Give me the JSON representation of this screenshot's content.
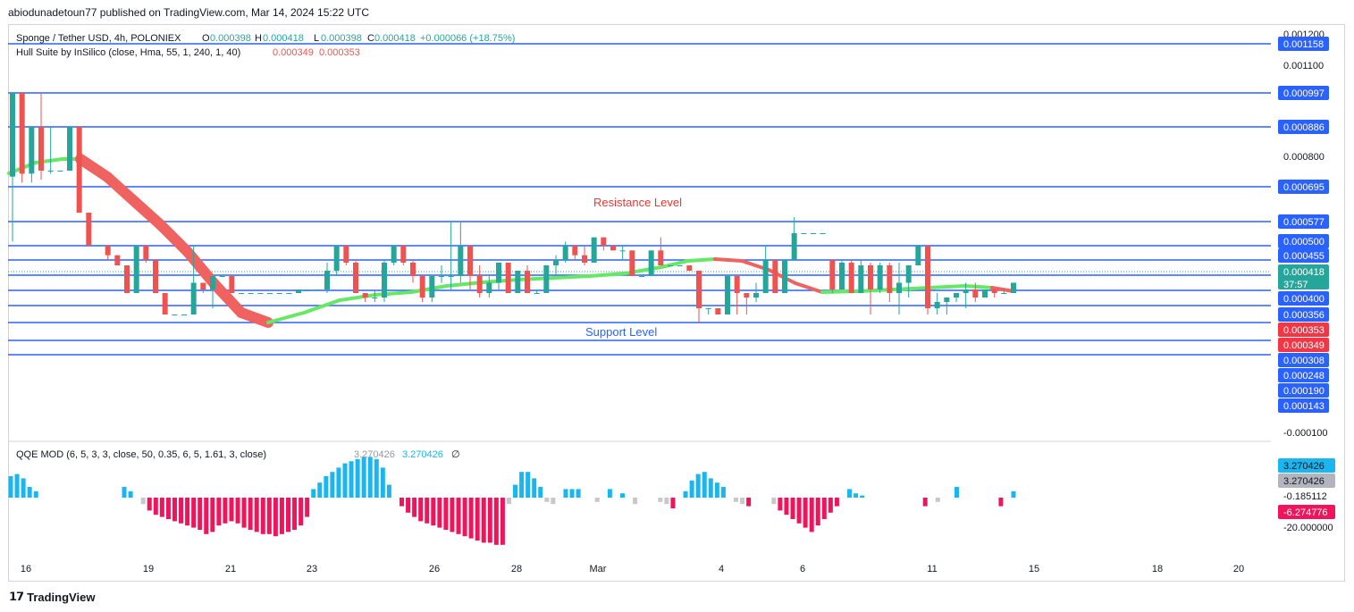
{
  "header": {
    "publisher_line": "abiodunadetoun77 published on TradingView.com, Mar 14, 2024 15:22 UTC"
  },
  "footer": {
    "brand": "TradingView"
  },
  "legend": {
    "symbol_line": "Sponge / Tether USD, 4h, POLONIEX",
    "ohlc": {
      "o_label": "O",
      "o_value": "0.000398",
      "h_label": "H",
      "h_value": "0.000418",
      "l_label": "L",
      "l_value": "0.000398",
      "c_label": "C",
      "c_value": "0.000418",
      "change": "+0.000066 (+18.75%)"
    },
    "indicator_line": "Hull Suite by InSilico (close, Hma, 55, 1, 240, 1, 40)",
    "indicator_values": [
      "0.000349",
      "0.000353"
    ],
    "qqe_line": "QQE MOD (6, 5, 3, 3, close, 50, 0.35, 6, 5, 1.61, 3, close)",
    "qqe_values": [
      "3.270426",
      "3.270426"
    ],
    "qqe_extra_icon": "empty-set-icon"
  },
  "annotations": {
    "resistance": "Resistance Level",
    "support": "Support Level"
  },
  "colors": {
    "up": "#26a69a",
    "down": "#ef5350",
    "level_line": "#2962ff",
    "hull_green": "#66e866",
    "hull_red": "#f0625f",
    "qqe_blue": "#1ab6f0",
    "qqe_pink": "#f0145c",
    "qqe_gray": "#c8c8c8"
  },
  "chart_data": [
    {
      "type": "candlestick",
      "title": "Sponge / Tether USD, 4h, POLONIEX",
      "y_tick_labels": [
        "0.001200",
        "0.001100",
        "0.000800",
        "-0.000100"
      ],
      "ylim": [
        -0.0001,
        0.0012
      ],
      "x_tick_labels": [
        "16",
        "19",
        "21",
        "23",
        "26",
        "28",
        "Mar",
        "4",
        "6",
        "11",
        "15",
        "18",
        "20"
      ],
      "horizontal_levels": [
        0.001158,
        0.000997,
        0.000886,
        0.000695,
        0.000577,
        0.0005,
        0.000455,
        0.000418,
        0.0004,
        0.000356,
        0.000308,
        0.000248,
        0.00019,
        0.000143
      ],
      "price_scale_badges": [
        {
          "label": "0.001158",
          "kind": "level"
        },
        {
          "label": "0.000997",
          "kind": "level"
        },
        {
          "label": "0.000886",
          "kind": "level"
        },
        {
          "label": "0.000695",
          "kind": "level"
        },
        {
          "label": "0.000577",
          "kind": "level"
        },
        {
          "label": "0.000500",
          "kind": "level"
        },
        {
          "label": "0.000455",
          "kind": "level"
        },
        {
          "label": "0.000418",
          "kind": "last",
          "sub": "37:57"
        },
        {
          "label": "0.000400",
          "kind": "level"
        },
        {
          "label": "0.000356",
          "kind": "level"
        },
        {
          "label": "0.000353",
          "kind": "hull"
        },
        {
          "label": "0.000349",
          "kind": "hull"
        },
        {
          "label": "0.000308",
          "kind": "level"
        },
        {
          "label": "0.000248",
          "kind": "level"
        },
        {
          "label": "0.000190",
          "kind": "level"
        },
        {
          "label": "0.000143",
          "kind": "level"
        }
      ],
      "candles": [
        [
          0.00074,
          0.00097,
          0.00051,
          0.00097
        ],
        [
          0.00097,
          0.00097,
          0.00072,
          0.00075
        ],
        [
          0.00075,
          0.00088,
          0.00072,
          0.00088
        ],
        [
          0.00088,
          0.00097,
          0.00073,
          0.00076
        ],
        [
          0.00076,
          0.00088,
          0.00075,
          0.00076
        ],
        [
          0.00076,
          0.00076,
          0.00076,
          0.00076
        ],
        [
          0.00076,
          0.00088,
          0.00076,
          0.00088
        ],
        [
          0.00088,
          0.00088,
          0.00062,
          0.00062
        ],
        [
          0.00062,
          0.00062,
          0.0005,
          0.0005
        ],
        [
          0.0005,
          0.0005,
          0.0005,
          0.0005
        ],
        [
          0.0005,
          0.0005,
          0.00047,
          0.00048
        ],
        [
          0.00048,
          0.00048,
          0.00045,
          0.00045
        ],
        [
          0.00045,
          0.00045,
          0.0004,
          0.0004
        ],
        [
          0.0004,
          0.0005,
          0.0004,
          0.0005
        ],
        [
          0.0005,
          0.0005,
          0.00046,
          0.00047
        ],
        [
          0.00047,
          0.00047,
          0.0004,
          0.0004
        ],
        [
          0.0004,
          0.0004,
          0.00036,
          0.00036
        ],
        [
          0.00036,
          0.00036,
          0.00036,
          0.00036
        ],
        [
          0.00036,
          0.00036,
          0.00036,
          0.00036
        ],
        [
          0.00036,
          0.0005,
          0.00036,
          0.00042
        ],
        [
          0.00042,
          0.00042,
          0.0004,
          0.00041
        ],
        [
          0.00041,
          0.00043,
          0.00037,
          0.00043
        ],
        [
          0.00043,
          0.00043,
          0.00043,
          0.00043
        ],
        [
          0.00043,
          0.00043,
          0.0004,
          0.0004
        ],
        [
          0.0004,
          0.0004,
          0.0004,
          0.0004
        ],
        [
          0.0004,
          0.0004,
          0.0004,
          0.0004
        ],
        [
          0.0004,
          0.0004,
          0.0004,
          0.0004
        ],
        [
          0.0004,
          0.0004,
          0.0004,
          0.0004
        ],
        [
          0.0004,
          0.0004,
          0.0004,
          0.0004
        ],
        [
          0.0004,
          0.0004,
          0.0004,
          0.0004
        ],
        [
          0.0004,
          0.00041,
          0.0004,
          0.00041
        ],
        [
          0.00041,
          0.00041,
          0.00041,
          0.00041
        ],
        [
          0.00041,
          0.00041,
          0.00041,
          0.00041
        ],
        [
          0.00041,
          0.00046,
          0.0004,
          0.00044
        ],
        [
          0.00044,
          0.0005,
          0.00043,
          0.0005
        ],
        [
          0.0005,
          0.0005,
          0.00045,
          0.00046
        ],
        [
          0.00046,
          0.00047,
          0.0004,
          0.0004
        ],
        [
          0.0004,
          0.0004,
          0.00038,
          0.00039
        ],
        [
          0.00039,
          0.00041,
          0.00038,
          0.00039
        ],
        [
          0.00039,
          0.00047,
          0.00038,
          0.00046
        ],
        [
          0.00046,
          0.0005,
          0.00045,
          0.0005
        ],
        [
          0.0005,
          0.0005,
          0.00045,
          0.00046
        ],
        [
          0.00046,
          0.00047,
          0.00042,
          0.00043
        ],
        [
          0.00043,
          0.00043,
          0.00038,
          0.00039
        ],
        [
          0.00039,
          0.00043,
          0.00038,
          0.00043
        ],
        [
          0.00043,
          0.00045,
          0.00042,
          0.00043
        ],
        [
          0.00043,
          0.00058,
          0.00041,
          0.00043
        ],
        [
          0.00043,
          0.00058,
          0.00042,
          0.0005
        ],
        [
          0.0005,
          0.0005,
          0.00041,
          0.00043
        ],
        [
          0.00043,
          0.00045,
          0.00039,
          0.0004
        ],
        [
          0.0004,
          0.00043,
          0.00039,
          0.00042
        ],
        [
          0.00042,
          0.00046,
          0.00041,
          0.00046
        ],
        [
          0.00046,
          0.00046,
          0.0004,
          0.0004
        ],
        [
          0.0004,
          0.00044,
          0.0004,
          0.00044
        ],
        [
          0.00044,
          0.00045,
          0.0004,
          0.0004
        ],
        [
          0.0004,
          0.00041,
          0.0004,
          0.0004
        ],
        [
          0.0004,
          0.00045,
          0.0004,
          0.00045
        ],
        [
          0.00045,
          0.00048,
          0.00043,
          0.00047
        ],
        [
          0.00047,
          0.00051,
          0.00046,
          0.0005
        ],
        [
          0.0005,
          0.0005,
          0.00047,
          0.00048
        ],
        [
          0.00048,
          0.0005,
          0.00045,
          0.00046
        ],
        [
          0.00046,
          0.00052,
          0.00046,
          0.00052
        ],
        [
          0.00052,
          0.00052,
          0.00049,
          0.0005
        ],
        [
          0.0005,
          0.0005,
          0.00049,
          0.00049
        ],
        [
          0.00049,
          0.0005,
          0.00047,
          0.00049
        ],
        [
          0.00049,
          0.00049,
          0.00043,
          0.00043
        ],
        [
          0.00043,
          0.00043,
          0.00043,
          0.00043
        ],
        [
          0.00043,
          0.00049,
          0.00043,
          0.00049
        ],
        [
          0.00049,
          0.00052,
          0.00045,
          0.00045
        ],
        [
          0.00045,
          0.00045,
          0.00045,
          0.00045
        ],
        [
          0.00045,
          0.00045,
          0.00045,
          0.00045
        ],
        [
          0.00045,
          0.00045,
          0.00044,
          0.00044
        ],
        [
          0.00044,
          0.00044,
          0.00035,
          0.00037
        ],
        [
          0.00037,
          0.00037,
          0.00036,
          0.00037
        ],
        [
          0.00037,
          0.00037,
          0.00036,
          0.00036
        ],
        [
          0.00036,
          0.00043,
          0.00036,
          0.00043
        ],
        [
          0.00043,
          0.00043,
          0.00036,
          0.0004
        ],
        [
          0.0004,
          0.0004,
          0.00036,
          0.00039
        ],
        [
          0.00039,
          0.00042,
          0.00038,
          0.0004
        ],
        [
          0.0004,
          0.0005,
          0.0004,
          0.00047
        ],
        [
          0.00047,
          0.00047,
          0.0004,
          0.0004
        ],
        [
          0.0004,
          0.00047,
          0.0004,
          0.00047
        ],
        [
          0.00047,
          0.0006,
          0.00047,
          0.00053
        ],
        [
          0.00053,
          0.00053,
          0.00053,
          0.00053
        ],
        [
          0.00053,
          0.00053,
          0.00053,
          0.00053
        ],
        [
          0.00053,
          0.00053,
          0.00053,
          0.00053
        ],
        [
          0.00047,
          0.00047,
          0.0004,
          0.00041
        ],
        [
          0.00041,
          0.00047,
          0.00041,
          0.00046
        ],
        [
          0.00046,
          0.00047,
          0.0004,
          0.0004
        ],
        [
          0.0004,
          0.00047,
          0.0004,
          0.00045
        ],
        [
          0.00045,
          0.00046,
          0.00036,
          0.00041
        ],
        [
          0.00041,
          0.00046,
          0.0004,
          0.00045
        ],
        [
          0.00045,
          0.00046,
          0.00038,
          0.0004
        ],
        [
          0.0004,
          0.00046,
          0.00036,
          0.00042
        ],
        [
          0.00042,
          0.00045,
          0.00039,
          0.00045
        ],
        [
          0.00045,
          0.0005,
          0.00045,
          0.0005
        ],
        [
          0.0005,
          0.0005,
          0.00036,
          0.00037
        ],
        [
          0.00037,
          0.0004,
          0.00036,
          0.00038
        ],
        [
          0.00038,
          0.00039,
          0.00036,
          0.00039
        ],
        [
          0.00039,
          0.0004,
          0.00038,
          0.0004
        ],
        [
          0.0004,
          0.00042,
          0.00037,
          0.00041
        ],
        [
          0.00041,
          0.00042,
          0.00038,
          0.00039
        ],
        [
          0.00039,
          0.00041,
          0.00039,
          0.00041
        ],
        [
          0.00041,
          0.00041,
          0.00039,
          0.0004
        ],
        [
          0.0004,
          0.00041,
          0.0004,
          0.0004
        ],
        [
          0.0004,
          0.00042,
          0.0004,
          0.00042
        ]
      ]
    },
    {
      "type": "bar",
      "title": "QQE MOD (6, 5, 3, 3, close, 50, 0.35, 6, 5, 1.61, 3, close)",
      "y_tick_labels": [
        "-0.185112",
        "-20.000000"
      ],
      "price_scale_badges": [
        {
          "label": "3.270426",
          "kind": "blue"
        },
        {
          "label": "3.270426",
          "kind": "gray"
        },
        {
          "label": "-0.185112",
          "kind": "plain"
        },
        {
          "label": "-6.274776",
          "kind": "pink"
        }
      ],
      "values": [
        10,
        11,
        9,
        5,
        3,
        0,
        0,
        0,
        0,
        0,
        0,
        0,
        0,
        0,
        0,
        0,
        0,
        0,
        5,
        3,
        0,
        -3,
        -6,
        -8,
        -9,
        -10,
        -11,
        -12,
        -13,
        -14,
        -15,
        -17,
        -16,
        -13,
        -12,
        -11,
        -12,
        -14,
        -15,
        -16,
        -17,
        -17,
        -18,
        -17,
        -16,
        -15,
        -13,
        -9,
        4,
        7,
        10,
        12,
        14,
        16,
        17,
        18,
        19,
        19,
        18,
        14,
        6,
        0,
        -4,
        -7,
        -9,
        -11,
        -12,
        -13,
        -14,
        -15,
        -16,
        -17,
        -18,
        -19,
        -20,
        -21,
        -21,
        -22,
        -22,
        -3,
        6,
        12,
        12,
        9,
        5,
        -2,
        -3,
        0,
        4,
        4,
        4,
        0,
        0,
        -2,
        0,
        4,
        0,
        2,
        0,
        -3,
        0,
        0,
        0,
        -2,
        -3,
        -5,
        0,
        3,
        8,
        11,
        12,
        9,
        7,
        5,
        0,
        -2,
        -3,
        -4,
        0,
        0,
        0,
        -3,
        -6,
        -8,
        -10,
        -12,
        -14,
        -16,
        -13,
        -10,
        -7,
        -4,
        0,
        4,
        2,
        1,
        0,
        0,
        0,
        0,
        0,
        0,
        0,
        0,
        0,
        -4,
        0,
        -2,
        0,
        0,
        5,
        0,
        0,
        0,
        0,
        0,
        0,
        -4,
        0,
        3
      ],
      "colors": [
        "blue",
        "pink",
        "gray"
      ]
    }
  ]
}
